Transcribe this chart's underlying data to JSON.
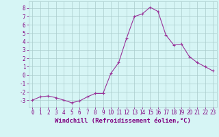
{
  "x": [
    0,
    1,
    2,
    3,
    4,
    5,
    6,
    7,
    8,
    9,
    10,
    11,
    12,
    13,
    14,
    15,
    16,
    17,
    18,
    19,
    20,
    21,
    22,
    23
  ],
  "y": [
    -3.0,
    -2.6,
    -2.5,
    -2.7,
    -3.0,
    -3.3,
    -3.1,
    -2.6,
    -2.2,
    -2.2,
    0.2,
    1.5,
    4.4,
    7.0,
    7.3,
    8.1,
    7.6,
    4.8,
    3.6,
    3.7,
    2.2,
    1.5,
    1.0,
    0.5
  ],
  "line_color": "#993399",
  "marker": "+",
  "bg_color": "#d6f5f5",
  "grid_color": "#aacccc",
  "xlabel": "Windchill (Refroidissement éolien,°C)",
  "xlim": [
    -0.5,
    23.5
  ],
  "ylim": [
    -3.8,
    8.8
  ],
  "yticks": [
    -3,
    -2,
    -1,
    0,
    1,
    2,
    3,
    4,
    5,
    6,
    7,
    8
  ],
  "xticks": [
    0,
    1,
    2,
    3,
    4,
    5,
    6,
    7,
    8,
    9,
    10,
    11,
    12,
    13,
    14,
    15,
    16,
    17,
    18,
    19,
    20,
    21,
    22,
    23
  ],
  "axis_label_color": "#800080",
  "tick_label_color": "#800080",
  "label_fontsize": 6.5,
  "tick_fontsize": 5.5,
  "linewidth": 0.8,
  "markersize": 3,
  "markeredgewidth": 0.8
}
